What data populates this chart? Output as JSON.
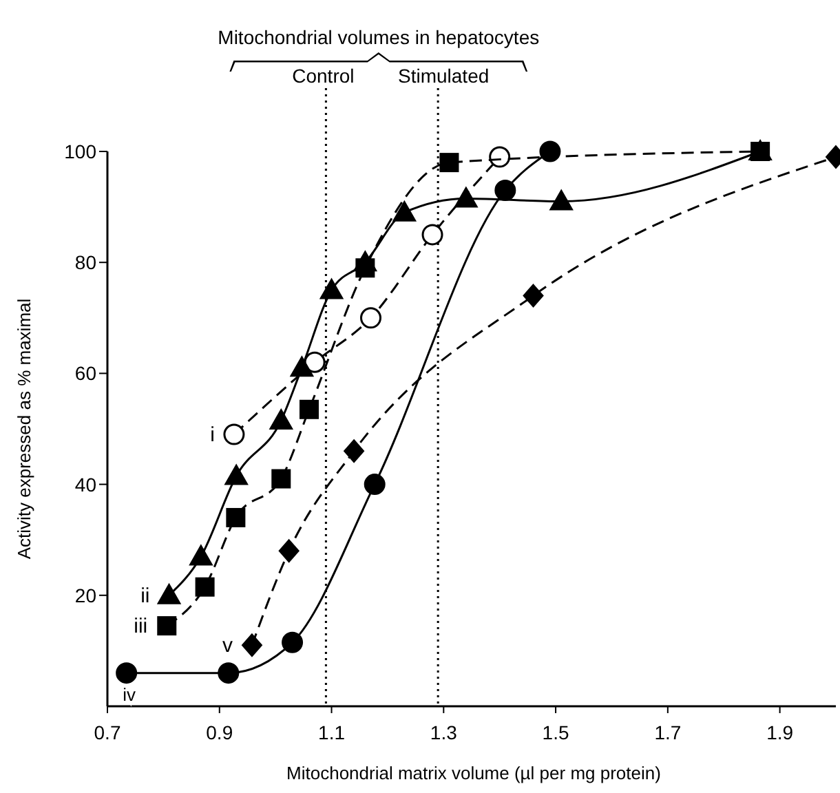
{
  "chart_data": {
    "type": "line",
    "xlabel": "Mitochondrial matrix volume (µl per mg protein)",
    "ylabel": "Activity expressed as % maximal",
    "annotations": [
      "Mitochondrial volumes in hepatocytes"
    ],
    "xlim": [
      0.7,
      2.0
    ],
    "xticks": [
      0.7,
      0.9,
      1.1,
      1.3,
      1.5,
      1.7,
      1.9
    ],
    "ylim": [
      0,
      100
    ],
    "yticks": [
      20,
      40,
      60,
      80,
      100
    ],
    "grid": false,
    "ref_lines": [
      {
        "axis": "x",
        "value": 1.09,
        "label": "Control",
        "line_style": "dotted"
      },
      {
        "axis": "x",
        "value": 1.29,
        "label": "Stimulated",
        "line_style": "dotted"
      }
    ],
    "series": [
      {
        "name": "i",
        "color": "#ffffff",
        "marker": "circle",
        "line_style": "dashed",
        "x": [
          0.926,
          1.07,
          1.17,
          1.28,
          1.4
        ],
        "values": [
          49,
          62,
          70,
          85,
          99
        ]
      },
      {
        "name": "ii",
        "color": "#000000",
        "marker": "triangle",
        "line_style": "solid",
        "x": [
          0.81,
          0.867,
          0.93,
          1.01,
          1.047,
          1.1,
          1.16,
          1.23,
          1.34,
          1.51,
          1.865
        ],
        "values": [
          20,
          27,
          41.5,
          51.5,
          61,
          75,
          80,
          89,
          91.5,
          91,
          100
        ]
      },
      {
        "name": "iii",
        "color": "#000000",
        "marker": "square",
        "line_style": "dashed",
        "x": [
          0.806,
          0.874,
          0.929,
          1.01,
          1.06,
          1.16,
          1.31,
          1.865
        ],
        "values": [
          14.5,
          21.5,
          34,
          41,
          53.5,
          79,
          98,
          100
        ]
      },
      {
        "name": "iv",
        "color": "#000000",
        "marker": "circle",
        "line_style": "solid",
        "x": [
          0.734,
          0.916,
          1.03,
          1.177,
          1.41,
          1.49
        ],
        "values": [
          6,
          6,
          11.5,
          40,
          93,
          100
        ]
      },
      {
        "name": "v",
        "color": "#000000",
        "marker": "diamond",
        "line_style": "dashed",
        "x": [
          0.958,
          1.024,
          1.14,
          1.46,
          2.0
        ],
        "values": [
          11,
          28,
          46,
          74,
          99
        ]
      }
    ]
  }
}
